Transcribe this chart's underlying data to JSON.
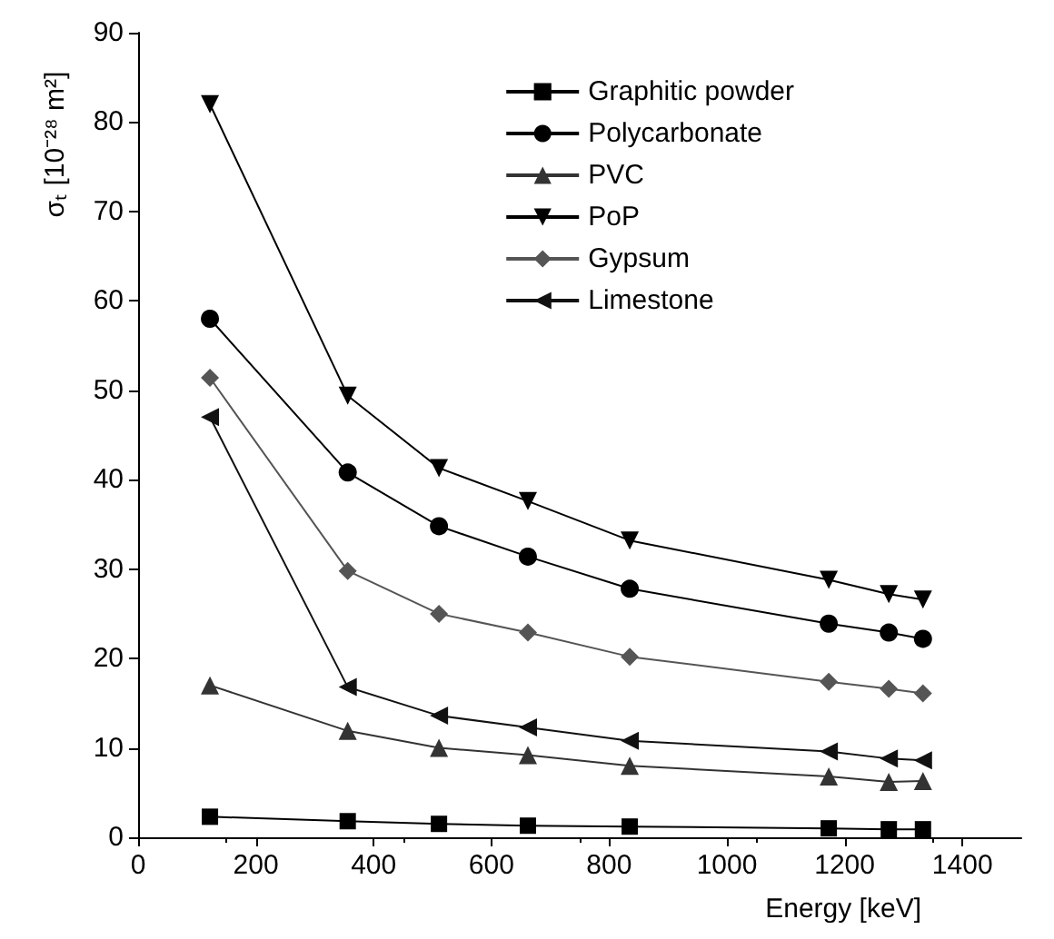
{
  "chart_data": {
    "type": "line",
    "xlabel": "Energy [keV]",
    "ylabel": "σₜ [10⁻²⁸ m²]",
    "x": [
      122,
      356,
      511,
      662,
      835,
      1173,
      1275,
      1333
    ],
    "xlim": [
      0,
      1500
    ],
    "xticks": [
      0,
      200,
      400,
      600,
      800,
      1000,
      1200,
      1400
    ],
    "ylim": [
      0,
      90
    ],
    "yticks": [
      0,
      10,
      20,
      30,
      40,
      50,
      60,
      70,
      80,
      90
    ],
    "grid": false,
    "legend": "top right",
    "line_style": "solid",
    "series": [
      {
        "name": "Graphitic powder",
        "color": "#000000",
        "marker": "square",
        "values": [
          2.3,
          1.8,
          1.5,
          1.3,
          1.2,
          1.0,
          0.9,
          0.9
        ]
      },
      {
        "name": "Polycarbonate",
        "color": "#000000",
        "marker": "circle",
        "values": [
          58,
          40.8,
          34.8,
          31.4,
          27.8,
          23.9,
          22.9,
          22.2
        ]
      },
      {
        "name": "PVC",
        "color": "#333333",
        "marker": "triangle",
        "values": [
          17,
          11.9,
          10,
          9.2,
          8,
          6.8,
          6.2,
          6.3
        ]
      },
      {
        "name": "PoP",
        "color": "#000000",
        "marker": "triangle-down",
        "values": [
          82,
          49.4,
          41.3,
          37.6,
          33.2,
          28.8,
          27.2,
          26.6
        ]
      },
      {
        "name": "Gypsum",
        "color": "#555555",
        "marker": "diamond",
        "values": [
          51.4,
          29.8,
          25,
          22.9,
          20.2,
          17.4,
          16.6,
          16.1
        ]
      },
      {
        "name": "Limestone",
        "color": "#111111",
        "marker": "triangle-left",
        "values": [
          47,
          16.8,
          13.6,
          12.3,
          10.8,
          9.6,
          8.8,
          8.6
        ]
      }
    ]
  }
}
